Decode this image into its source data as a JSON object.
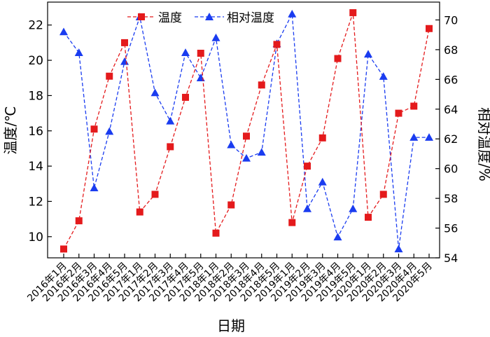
{
  "chart_data": {
    "type": "line",
    "xlabel": "日期",
    "ylabel_left": "温度/℃",
    "ylabel_right": "相对温度/%",
    "ylim_left": [
      8.8,
      23.3
    ],
    "ylim_right": [
      54,
      71.2
    ],
    "yticks_left": [
      10,
      12,
      14,
      16,
      18,
      20,
      22
    ],
    "yticks_right": [
      54,
      56,
      58,
      60,
      62,
      64,
      66,
      68,
      70
    ],
    "categories": [
      "2016年1月",
      "2016年2月",
      "2016年3月",
      "2016年4月",
      "2016年5月",
      "2017年1月",
      "2017年2月",
      "2017年3月",
      "2017年4月",
      "2017年5月",
      "2018年1月",
      "2018年2月",
      "2018年3月",
      "2018年4月",
      "2018年5月",
      "2019年1月",
      "2019年2月",
      "2019年3月",
      "2019年4月",
      "2019年5月",
      "2020年1月",
      "2020年2月",
      "2020年3月",
      "2020年4月",
      "2020年5月"
    ],
    "legend_position": "top",
    "series": [
      {
        "name": "温度",
        "axis": "left",
        "color": "#e41a1c",
        "marker": "square",
        "values": [
          9.3,
          10.9,
          16.1,
          19.1,
          21.0,
          11.4,
          12.4,
          15.1,
          17.9,
          20.4,
          10.2,
          11.8,
          15.7,
          18.6,
          20.9,
          10.8,
          14.0,
          15.6,
          20.1,
          22.7,
          11.1,
          12.4,
          17.0,
          17.4,
          21.8
        ]
      },
      {
        "name": "相对温度",
        "axis": "right",
        "color": "#1a3cf0",
        "marker": "triangle",
        "values": [
          69.2,
          67.8,
          58.7,
          62.5,
          67.2,
          70.2,
          65.1,
          63.2,
          67.8,
          66.1,
          68.8,
          61.6,
          60.7,
          61.1,
          68.4,
          70.4,
          57.3,
          59.1,
          55.4,
          57.3,
          67.7,
          66.2,
          54.6,
          62.1,
          62.1
        ]
      }
    ]
  }
}
